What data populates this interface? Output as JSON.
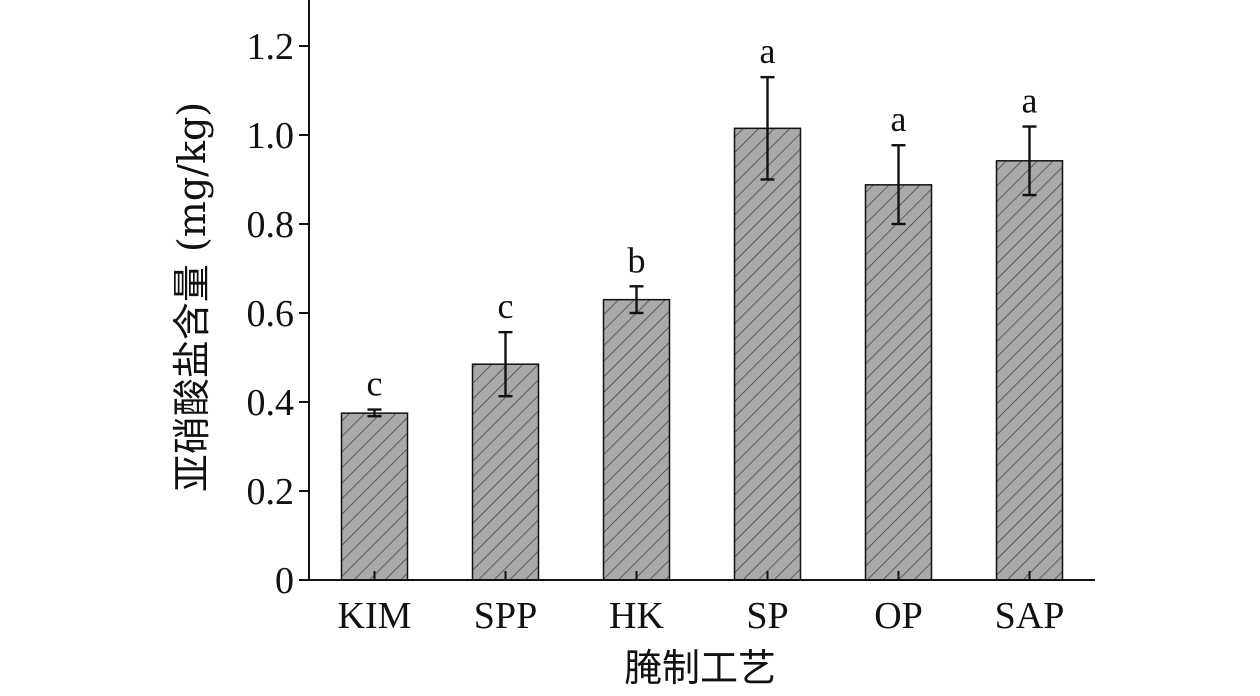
{
  "chart_data": {
    "type": "bar",
    "categories": [
      "KIM",
      "SPP",
      "HK",
      "SP",
      "OP",
      "SAP"
    ],
    "values": [
      0.375,
      0.485,
      0.63,
      1.015,
      0.888,
      0.942
    ],
    "error_low": [
      0.368,
      0.413,
      0.6,
      0.9,
      0.8,
      0.865
    ],
    "error_high": [
      0.383,
      0.557,
      0.66,
      1.13,
      0.977,
      1.019
    ],
    "significance": [
      "c",
      "c",
      "b",
      "a",
      "a",
      "a"
    ],
    "xlabel": "腌制工艺",
    "ylabel": "亚硝酸盐含量 (mg/kg)",
    "yticks": [
      "0",
      "0.2",
      "0.4",
      "0.6",
      "0.8",
      "1.0",
      "1.2"
    ],
    "ylim": [
      0,
      1.3
    ],
    "grid": false,
    "bar_fill": "#a9a9a9",
    "hatch_color": "#333333",
    "axis_color": "#111111"
  }
}
